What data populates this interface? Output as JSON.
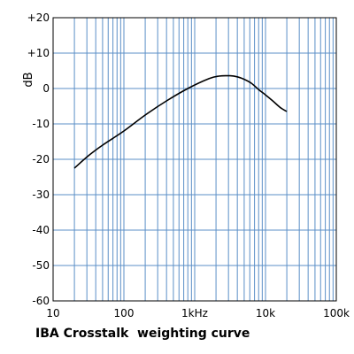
{
  "chart_data": {
    "type": "line",
    "title": "IBA Crosstalk  weighting curve",
    "xlabel": "",
    "ylabel": "dB",
    "x_scale": "log",
    "xlim": [
      10,
      100000
    ],
    "ylim": [
      -60,
      20
    ],
    "grid": true,
    "x_ticks": [
      {
        "value": 10,
        "label": "10"
      },
      {
        "value": 100,
        "label": "100"
      },
      {
        "value": 1000,
        "label": "1kHz"
      },
      {
        "value": 10000,
        "label": "10k"
      },
      {
        "value": 100000,
        "label": "100k"
      }
    ],
    "y_ticks": [
      {
        "value": 20,
        "label": "+20"
      },
      {
        "value": 10,
        "label": "+10"
      },
      {
        "value": 0,
        "label": "0"
      },
      {
        "value": -10,
        "label": "-10"
      },
      {
        "value": -20,
        "label": "-20"
      },
      {
        "value": -30,
        "label": "-30"
      },
      {
        "value": -40,
        "label": "-40"
      },
      {
        "value": -50,
        "label": "-50"
      },
      {
        "value": -60,
        "label": "-60"
      }
    ],
    "series": [
      {
        "color": "#000000",
        "x": [
          20,
          31.5,
          50,
          100,
          200,
          400,
          800,
          1600,
          2200,
          3150,
          4000,
          5000,
          6300,
          8000,
          10000,
          12500,
          16000,
          20000
        ],
        "y": [
          -22.5,
          -19.0,
          -16.0,
          -12.0,
          -7.5,
          -3.5,
          0.0,
          2.8,
          3.5,
          3.6,
          3.3,
          2.6,
          1.5,
          -0.3,
          -1.8,
          -3.4,
          -5.3,
          -6.5
        ]
      }
    ]
  },
  "colors": {
    "grid": "#5b8fc7",
    "axis": "#000000",
    "curve": "#000000"
  }
}
